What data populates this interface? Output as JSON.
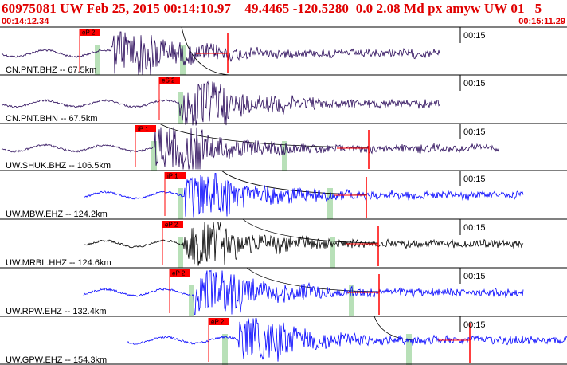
{
  "header": {
    "title": "60975081 UW Feb 25, 2015 00:14:10.97    49.4465 -120.5280  0.0 2.08 Md px amyw UW 01   5",
    "start_time": "00:14:12.34",
    "end_time": "00:15:11.29"
  },
  "colors": {
    "header_text": "#e00000",
    "pick_box": "#ff0000",
    "window_marker": "#b8e0b8",
    "trace_purple": "#2a0a5a",
    "trace_blue": "#0000ff",
    "trace_black": "#000000"
  },
  "traces": [
    {
      "label": "CN.PNT.BHZ -- 67.5km",
      "pick": "eP 2",
      "tick": "00:15",
      "color": "purple"
    },
    {
      "label": "CN.PNT.BHN -- 67.5km",
      "pick": "eS 2",
      "tick": "00:15",
      "color": "purple"
    },
    {
      "label": "UW.SHUK.BHZ -- 106.5km",
      "pick": "iP 1",
      "tick": "00:15",
      "color": "purple"
    },
    {
      "label": "UW.MBW.EHZ -- 124.2km",
      "pick": "iP 1",
      "tick": "00:15",
      "color": "blue"
    },
    {
      "label": "UW.MRBL.HHZ -- 124.6km",
      "pick": "eP 2",
      "tick": "00:15",
      "color": "black"
    },
    {
      "label": "UW.RPW.EHZ -- 132.4km",
      "pick": "eP 2",
      "tick": "00:15",
      "color": "blue"
    },
    {
      "label": "UW.GPW.EHZ -- 154.3km",
      "pick": "eP 2",
      "tick": "00:15",
      "color": "blue"
    }
  ]
}
